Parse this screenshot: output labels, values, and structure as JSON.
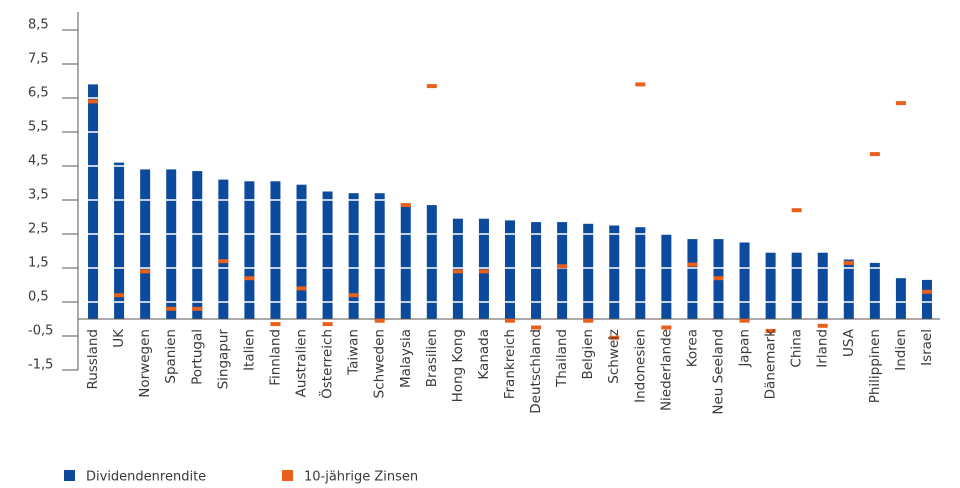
{
  "chart_data": {
    "type": "bar",
    "categories": [
      "Russland",
      "UK",
      "Norwegen",
      "Spanien",
      "Portugal",
      "Singapur",
      "Italien",
      "Finnland",
      "Australien",
      "Österreich",
      "Taiwan",
      "Schweden",
      "Malaysia",
      "Brasilien",
      "Hong Kong",
      "Kanada",
      "Frankreich",
      "Deutschland",
      "Thailand",
      "Belgien",
      "Schweiz",
      "Indonesien",
      "Niederlande",
      "Korea",
      "Neu Seeland",
      "Japan",
      "Dänemark",
      "China",
      "Irland",
      "USA",
      "Philippinen",
      "Indien",
      "Israel"
    ],
    "series": [
      {
        "name": "Dividendenrendite",
        "color": "#0b4a9c",
        "values": [
          6.9,
          4.6,
          4.4,
          4.4,
          4.35,
          4.1,
          4.05,
          4.05,
          3.95,
          3.75,
          3.7,
          3.7,
          3.4,
          3.35,
          2.95,
          2.95,
          2.9,
          2.85,
          2.85,
          2.8,
          2.75,
          2.7,
          2.5,
          2.35,
          2.35,
          2.25,
          1.95,
          1.95,
          1.95,
          1.75,
          1.65,
          1.2,
          1.15
        ]
      },
      {
        "name": "10-jährige Zinsen",
        "color": "#e8601c",
        "values": [
          6.4,
          0.7,
          1.4,
          0.3,
          0.3,
          1.7,
          1.2,
          -0.15,
          0.9,
          -0.15,
          0.7,
          -0.05,
          3.35,
          6.85,
          1.4,
          1.4,
          -0.05,
          -0.25,
          1.55,
          -0.05,
          -0.55,
          6.9,
          -0.25,
          1.6,
          1.2,
          -0.05,
          -0.35,
          3.2,
          -0.2,
          1.65,
          4.85,
          6.35,
          0.8
        ]
      }
    ],
    "ylim": [
      -1.5,
      8.5
    ],
    "yticks": [
      {
        "value": -1.5,
        "label": "-1,5"
      },
      {
        "value": -0.5,
        "label": "-0,5"
      },
      {
        "value": 0.5,
        "label": "0,5"
      },
      {
        "value": 1.5,
        "label": "1,5"
      },
      {
        "value": 2.5,
        "label": "2,5"
      },
      {
        "value": 3.5,
        "label": "3,5"
      },
      {
        "value": 4.5,
        "label": "4,5"
      },
      {
        "value": 5.5,
        "label": "5,5"
      },
      {
        "value": 6.5,
        "label": "6,5"
      },
      {
        "value": 7.5,
        "label": "7,5"
      },
      {
        "value": 8.5,
        "label": "8,5"
      }
    ],
    "grid": true
  }
}
